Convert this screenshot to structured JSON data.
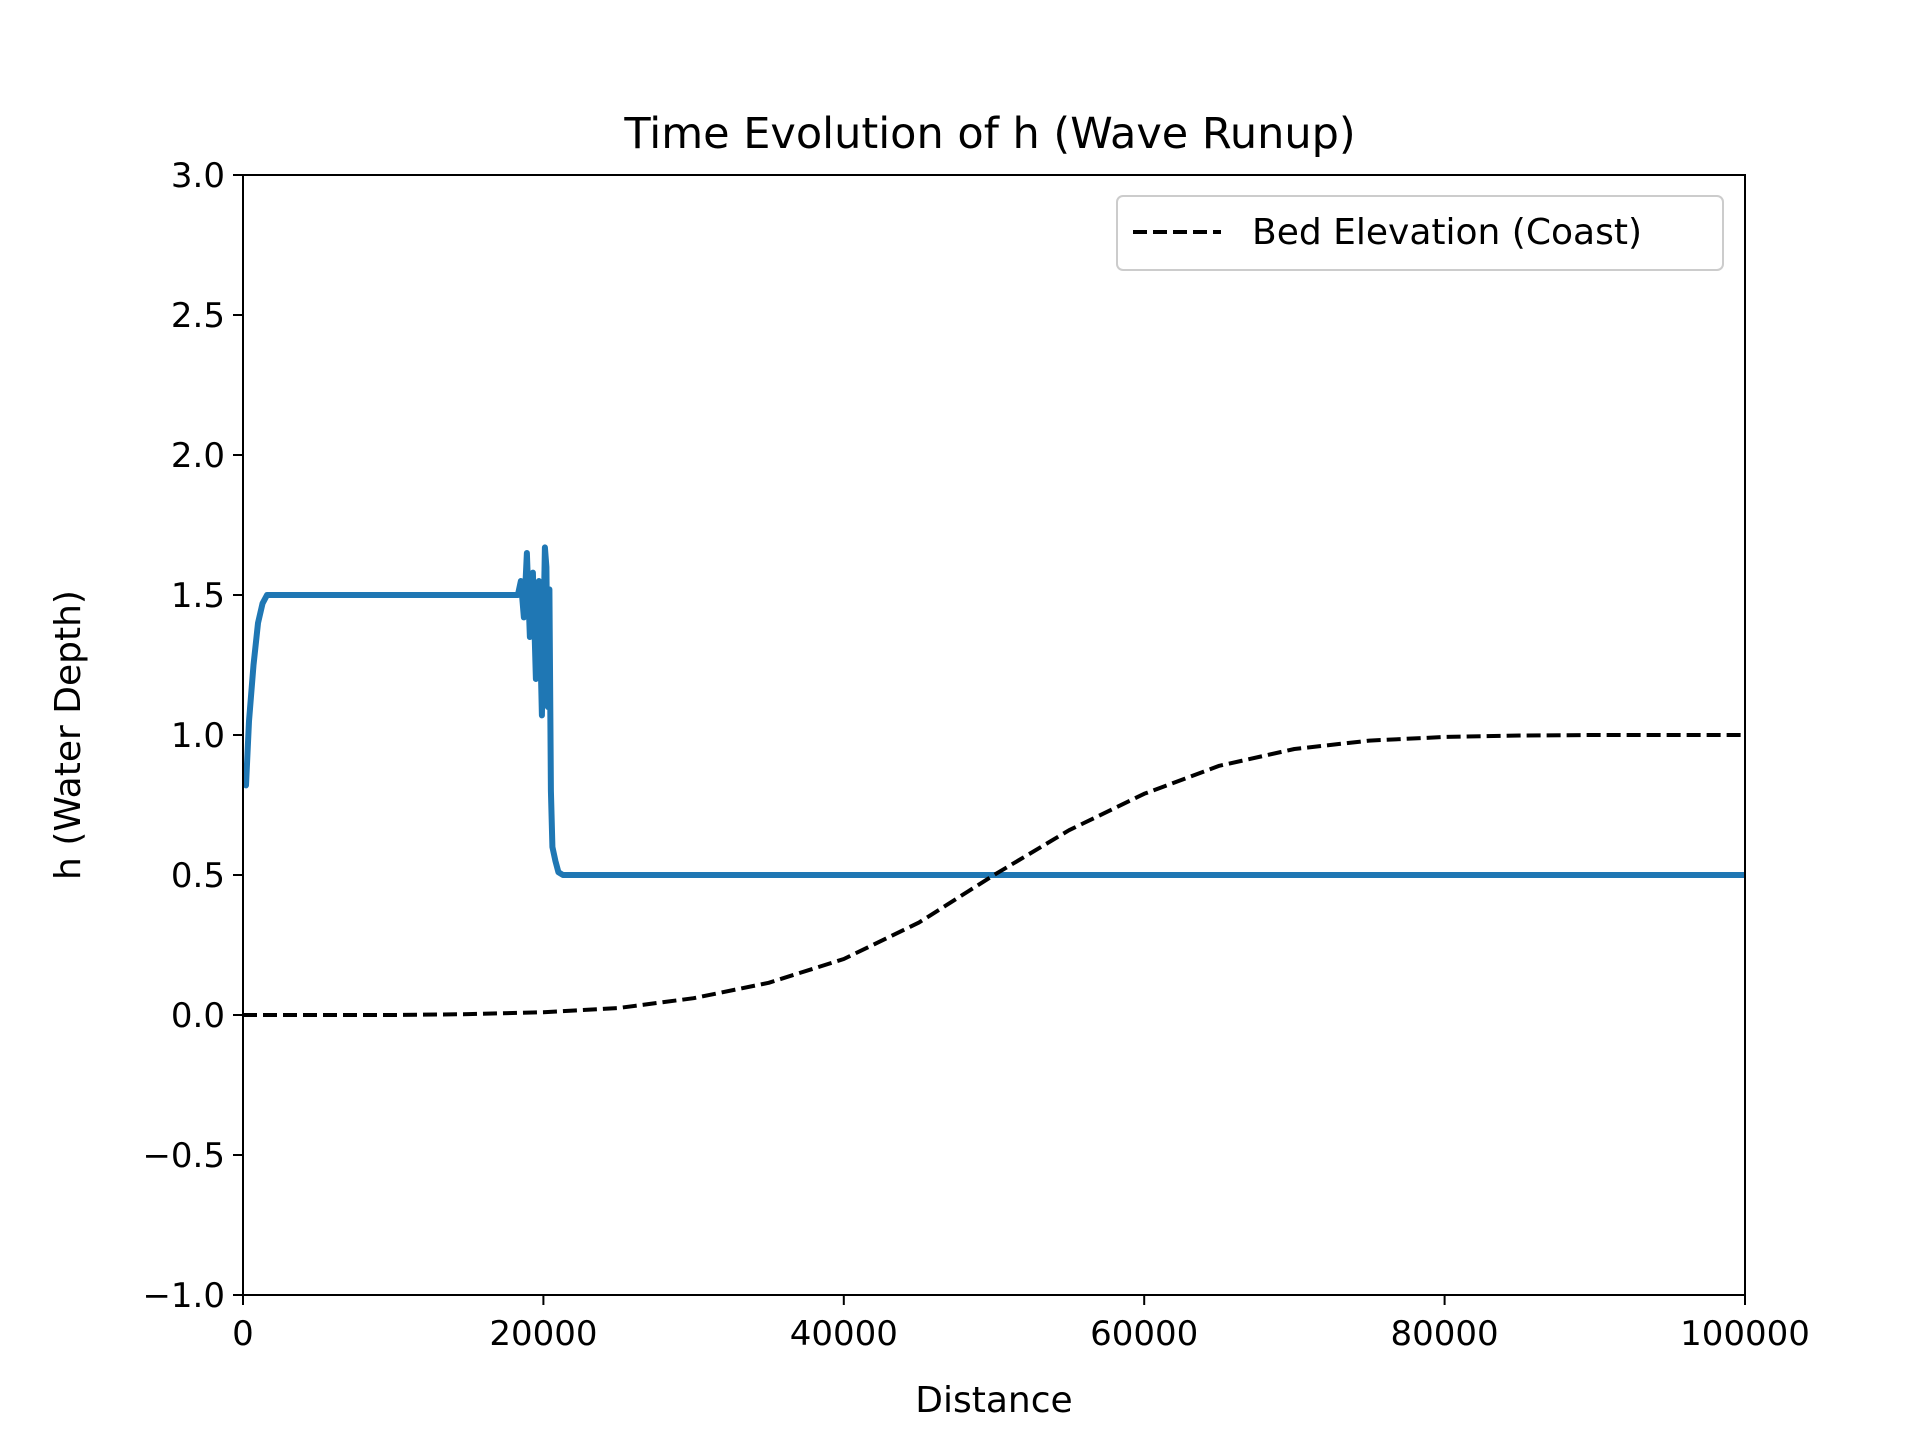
{
  "chart_data": {
    "type": "line",
    "title": "Time Evolution of h (Wave Runup)",
    "xlabel": "Distance",
    "ylabel": "h (Water Depth)",
    "xlim": [
      0,
      100000
    ],
    "ylim": [
      -1.0,
      3.0
    ],
    "grid": false,
    "legend_position": "top-right",
    "x_ticks": [
      {
        "value": 0,
        "label": "0"
      },
      {
        "value": 20000,
        "label": "20000"
      },
      {
        "value": 40000,
        "label": "40000"
      },
      {
        "value": 60000,
        "label": "60000"
      },
      {
        "value": 80000,
        "label": "80000"
      },
      {
        "value": 100000,
        "label": "100000"
      }
    ],
    "y_ticks": [
      {
        "value": -1.0,
        "label": "−1.0"
      },
      {
        "value": -0.5,
        "label": "−0.5"
      },
      {
        "value": 0.0,
        "label": "0.0"
      },
      {
        "value": 0.5,
        "label": "0.5"
      },
      {
        "value": 1.0,
        "label": "1.0"
      },
      {
        "value": 1.5,
        "label": "1.5"
      },
      {
        "value": 2.0,
        "label": "2.0"
      },
      {
        "value": 2.5,
        "label": "2.5"
      },
      {
        "value": 3.0,
        "label": "3.0"
      }
    ],
    "series": [
      {
        "key": "h",
        "color": "#1f77b4",
        "style": "solid",
        "x": [
          200,
          400,
          700,
          1000,
          1300,
          1600,
          2000,
          3000,
          5000,
          10000,
          15000,
          18000,
          18300,
          18500,
          18700,
          18900,
          19100,
          19300,
          19500,
          19700,
          19900,
          20100,
          20200,
          20300,
          20400,
          20500,
          20600,
          20800,
          21000,
          21300,
          22000,
          30000,
          50000,
          70000,
          90000,
          100000
        ],
        "y": [
          0.82,
          1.05,
          1.25,
          1.4,
          1.47,
          1.5,
          1.5,
          1.5,
          1.5,
          1.5,
          1.5,
          1.5,
          1.5,
          1.55,
          1.42,
          1.65,
          1.35,
          1.58,
          1.2,
          1.55,
          1.07,
          1.67,
          1.6,
          1.1,
          1.52,
          0.8,
          0.6,
          0.55,
          0.51,
          0.5,
          0.5,
          0.5,
          0.5,
          0.5,
          0.5,
          0.5
        ]
      },
      {
        "key": "bed",
        "name": "Bed Elevation (Coast)",
        "color": "#000000",
        "style": "dashed",
        "x": [
          0,
          5000,
          10000,
          15000,
          20000,
          25000,
          30000,
          35000,
          40000,
          45000,
          50000,
          55000,
          60000,
          65000,
          70000,
          75000,
          80000,
          85000,
          90000,
          95000,
          100000
        ],
        "y": [
          0.0,
          0.0,
          0.0,
          0.003,
          0.01,
          0.025,
          0.06,
          0.115,
          0.2,
          0.33,
          0.5,
          0.66,
          0.79,
          0.89,
          0.95,
          0.98,
          0.993,
          0.998,
          1.0,
          1.0,
          1.0
        ]
      }
    ]
  }
}
